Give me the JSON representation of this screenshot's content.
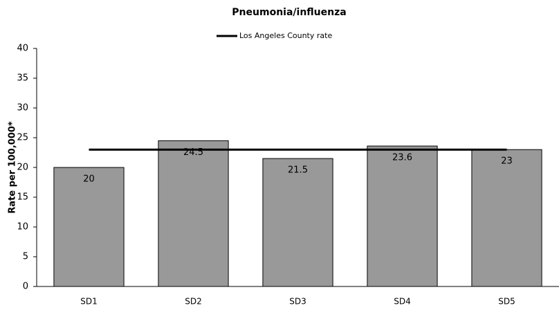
{
  "chart_data": {
    "type": "bar",
    "title": "Pneumonia/influenza",
    "y_label": "Rate per 100,000*",
    "categories": [
      "SD1",
      "SD2",
      "SD3",
      "SD4",
      "SD5"
    ],
    "values": [
      20,
      24.5,
      21.5,
      23.6,
      23
    ],
    "color": "#999999",
    "reference_line": {
      "name": "Los Angeles County rate",
      "value": 23,
      "color": "#000000"
    },
    "ylim": [
      0,
      40
    ],
    "yticks": [
      0,
      5,
      10,
      15,
      20,
      25,
      30,
      35,
      40
    ],
    "grid": false
  }
}
